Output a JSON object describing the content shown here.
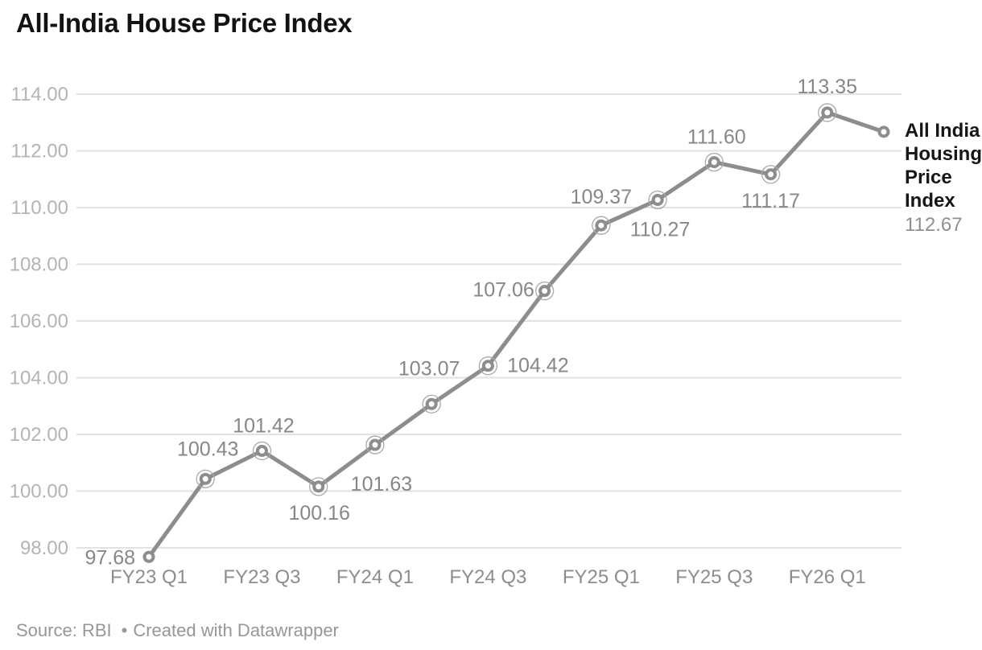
{
  "title": "All-India House Price Index",
  "legend": {
    "series_label": "All India Housing Price Index",
    "lines": [
      "All India",
      "Housing",
      "Price",
      "Index"
    ],
    "value": "112.67"
  },
  "footer": {
    "source": "Source: RBI",
    "separator": "•",
    "credit": "Created with Datawrapper"
  },
  "colors": {
    "line": "#8d8d8d",
    "marker_fill": "#ffffff",
    "ring": "#a9a9a9",
    "gridline": "#e2e2e2",
    "y_tick_label": "#b4b4b4",
    "x_tick_label": "#8d8d8d",
    "point_label": "#878787",
    "title": "#131313",
    "legend_name": "#161616",
    "legend_value": "#8f8f8f",
    "footer": "#979797"
  },
  "chart_data": {
    "type": "line",
    "title": "All-India House Price Index",
    "xlabel": "",
    "ylabel": "",
    "ylim": [
      98,
      114
    ],
    "grid": "horizontal",
    "legend_position": "right",
    "series": [
      {
        "name": "All India Housing Price Index",
        "color": "#8d8d8d",
        "values": [
          97.68,
          100.43,
          101.42,
          100.16,
          101.63,
          103.07,
          104.42,
          107.06,
          109.37,
          110.27,
          111.6,
          111.17,
          113.35,
          112.67
        ]
      }
    ],
    "point_labels": [
      "97.68",
      "100.43",
      "101.42",
      "100.16",
      "101.63",
      "103.07",
      "104.42",
      "107.06",
      "109.37",
      "110.27",
      "111.60",
      "111.17",
      "113.35",
      ""
    ],
    "point_rings": [
      false,
      true,
      true,
      true,
      true,
      true,
      true,
      true,
      true,
      true,
      true,
      true,
      true,
      false
    ],
    "label_offsets": [
      [
        -17,
        1,
        "end"
      ],
      [
        3,
        -37,
        "middle"
      ],
      [
        2,
        -31,
        "middle"
      ],
      [
        1,
        33,
        "middle"
      ],
      [
        8,
        49,
        "middle"
      ],
      [
        -3,
        -44,
        "middle"
      ],
      [
        62,
        0,
        "middle"
      ],
      [
        -51,
        -1,
        "middle"
      ],
      [
        0,
        -35,
        "middle"
      ],
      [
        3,
        37,
        "middle"
      ],
      [
        3,
        -31,
        "middle"
      ],
      [
        0,
        33,
        "middle"
      ],
      [
        0,
        -32,
        "middle"
      ],
      [
        0,
        0,
        "middle"
      ]
    ],
    "y_ticks": [
      {
        "value": 114,
        "label": "114.00"
      },
      {
        "value": 112,
        "label": "112.00"
      },
      {
        "value": 110,
        "label": "110.00"
      },
      {
        "value": 108,
        "label": "108.00"
      },
      {
        "value": 106,
        "label": "106.00"
      },
      {
        "value": 104,
        "label": "104.00"
      },
      {
        "value": 102,
        "label": "102.00"
      },
      {
        "value": 100,
        "label": "100.00"
      },
      {
        "value": 98,
        "label": "98.00"
      }
    ],
    "x_ticks": [
      {
        "index": 0,
        "label": "FY23 Q1"
      },
      {
        "index": 2,
        "label": "FY23 Q3"
      },
      {
        "index": 4,
        "label": "FY24 Q1"
      },
      {
        "index": 6,
        "label": "FY24 Q3"
      },
      {
        "index": 8,
        "label": "FY25 Q1"
      },
      {
        "index": 10,
        "label": "FY25 Q3"
      },
      {
        "index": 12,
        "label": "FY26 Q1"
      }
    ]
  }
}
